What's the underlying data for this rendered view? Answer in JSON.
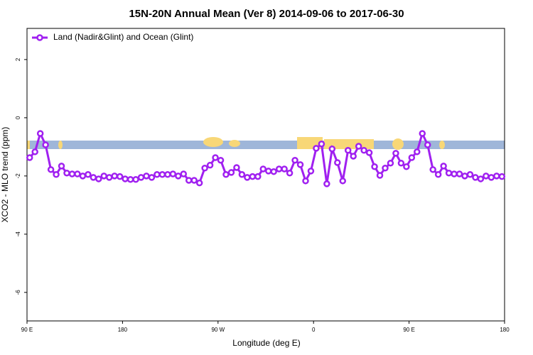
{
  "chart_data": {
    "type": "line",
    "title": "15N-20N Annual Mean (Ver 8)   2014-09-06 to 2017-06-30",
    "xlabel": "Longitude (deg E)",
    "ylabel": "XCO2 - MLO trend (ppm)",
    "xlim": [
      90,
      540
    ],
    "ylim": [
      -6.98,
      3.07
    ],
    "xticks": [
      {
        "value": 90,
        "label": "90 E"
      },
      180,
      {
        "value": 270,
        "label": "90 W"
      },
      {
        "value": 360,
        "label": "0"
      },
      {
        "value": 450,
        "label": "90 E"
      },
      {
        "value": 540,
        "label": "180"
      }
    ],
    "yticks": [
      2,
      0,
      -2,
      -4,
      -6
    ],
    "legend": "top-left",
    "x": [
      92.5,
      97.5,
      102.5,
      107.5,
      112.5,
      117.5,
      122.5,
      127.5,
      132.5,
      137.5,
      142.5,
      147.5,
      152.5,
      157.5,
      162.5,
      167.5,
      172.5,
      177.5,
      182.5,
      187.5,
      192.5,
      197.5,
      202.5,
      207.5,
      212.5,
      217.5,
      222.5,
      227.5,
      232.5,
      237.5,
      242.5,
      247.5,
      252.5,
      257.5,
      262.5,
      267.5,
      272.5,
      277.5,
      282.5,
      287.5,
      292.5,
      297.5,
      302.5,
      307.5,
      312.5,
      317.5,
      322.5,
      327.5,
      332.5,
      337.5,
      342.5,
      347.5,
      352.5,
      357.5,
      362.5,
      367.5,
      372.5,
      377.5,
      382.5,
      387.5,
      392.5,
      397.5,
      402.5,
      407.5,
      412.5,
      417.5,
      422.5,
      427.5,
      432.5,
      437.5,
      442.5,
      447.5,
      452.5,
      457.5,
      462.5,
      467.5,
      472.5,
      477.5,
      482.5,
      487.5,
      492.5,
      497.5,
      502.5,
      507.5,
      512.5,
      517.5,
      522.5,
      527.5,
      532.5,
      537.5
    ],
    "series": [
      {
        "name": "Land (Nadir&Glint) and Ocean (Glint)",
        "color": "#a020f0",
        "values": [
          -1.37,
          -1.17,
          -0.54,
          -0.93,
          -1.78,
          -1.95,
          -1.66,
          -1.9,
          -1.93,
          -1.93,
          -2.0,
          -1.95,
          -2.05,
          -2.1,
          -2.0,
          -2.05,
          -2.0,
          -2.02,
          -2.1,
          -2.12,
          -2.12,
          -2.05,
          -2.0,
          -2.05,
          -1.95,
          -1.95,
          -1.95,
          -1.93,
          -2.0,
          -1.93,
          -2.15,
          -2.15,
          -2.24,
          -1.73,
          -1.63,
          -1.37,
          -1.46,
          -1.95,
          -1.88,
          -1.71,
          -1.95,
          -2.05,
          -2.02,
          -2.02,
          -1.76,
          -1.83,
          -1.85,
          -1.76,
          -1.76,
          -1.9,
          -1.46,
          -1.61,
          -2.17,
          -1.83,
          -1.05,
          -0.9,
          -2.27,
          -1.07,
          -1.54,
          -2.17,
          -1.12,
          -1.32,
          -0.98,
          -1.12,
          -1.2,
          -1.68,
          -1.98,
          -1.73,
          -1.56,
          -1.22,
          -1.56,
          -1.68,
          -1.37,
          -1.17,
          -0.54,
          -0.93,
          -1.78,
          -1.95,
          -1.66,
          -1.9,
          -1.93,
          -1.93,
          -2.0,
          -1.95,
          -2.05,
          -2.1,
          -2.0,
          -2.05,
          -2.0,
          -2.02
        ]
      }
    ]
  }
}
